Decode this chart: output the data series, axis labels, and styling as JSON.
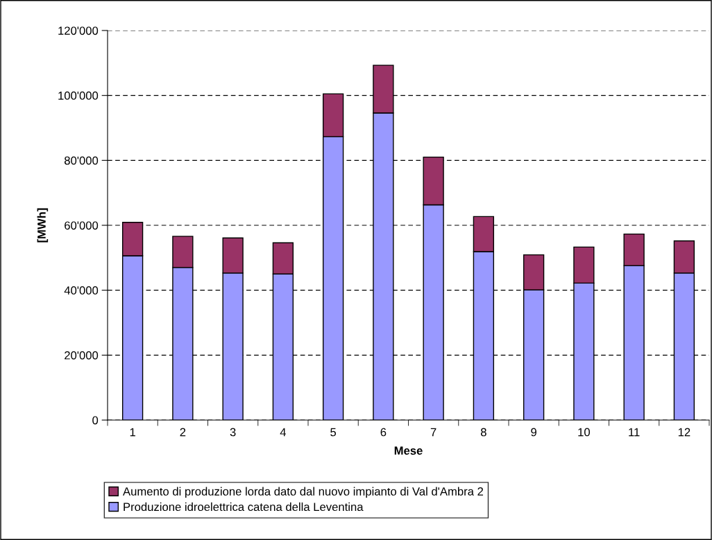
{
  "chart_data": {
    "type": "bar",
    "stacked": true,
    "xlabel": "Mese",
    "ylabel": "[MWh]",
    "categories": [
      "1",
      "2",
      "3",
      "4",
      "5",
      "6",
      "7",
      "8",
      "9",
      "10",
      "11",
      "12"
    ],
    "series": [
      {
        "name": "Produzione idroelettrica catena della Leventina",
        "color": "#9999ff",
        "values": [
          50600,
          47000,
          45300,
          45000,
          87300,
          94600,
          66300,
          51900,
          40100,
          42200,
          47600,
          45300
        ]
      },
      {
        "name": "Aumento di produzione lorda dato dal nuovo impianto di Val d'Ambra 2",
        "color": "#993366",
        "values": [
          10300,
          9600,
          10800,
          9600,
          13200,
          14700,
          14700,
          10800,
          10800,
          11100,
          9700,
          9900
        ]
      }
    ],
    "ylim": [
      0,
      120000
    ],
    "yticks": [
      0,
      {
        "value": 20000,
        "label": "20'000"
      },
      {
        "value": 40000,
        "label": "40'000"
      },
      {
        "value": 60000,
        "label": "60'000"
      },
      {
        "value": 80000,
        "label": "80'000"
      },
      {
        "value": 100000,
        "label": "100'000"
      },
      {
        "value": 120000,
        "label": "120'000"
      }
    ],
    "grid": "y",
    "legend": "bottom"
  }
}
